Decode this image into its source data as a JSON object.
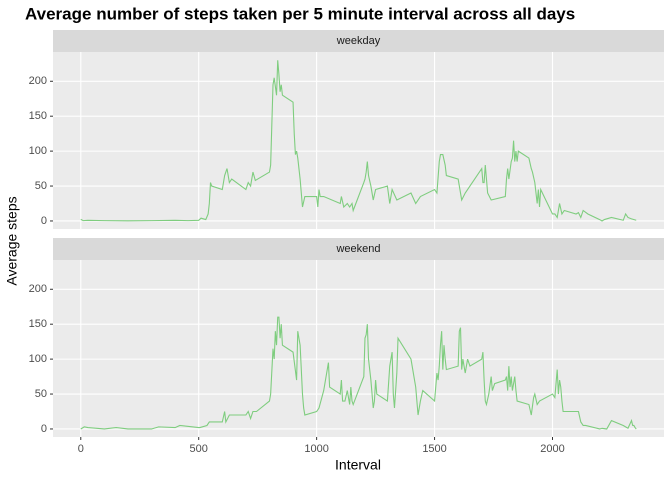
{
  "title": "Average number of steps taken per 5 minute interval across all days",
  "x_label": "Interval",
  "y_label": "Average steps",
  "chart_data": [
    {
      "type": "line",
      "title": "weekday",
      "color": "#7fcd7f",
      "grid": true,
      "xlim": [
        -117.75,
        2472.75
      ],
      "xticks": [
        0,
        500,
        1000,
        1500,
        2000
      ],
      "ylim": [
        -11.5,
        241.9
      ],
      "yticks": [
        0,
        50,
        100,
        150,
        200
      ],
      "x": [
        0,
        10,
        30,
        100,
        200,
        300,
        400,
        455,
        500,
        510,
        530,
        540,
        545,
        550,
        555,
        600,
        610,
        620,
        630,
        640,
        700,
        710,
        720,
        730,
        740,
        750,
        800,
        805,
        815,
        820,
        830,
        835,
        840,
        845,
        850,
        855,
        900,
        905,
        910,
        915,
        920,
        930,
        940,
        950,
        1000,
        1005,
        1010,
        1015,
        1030,
        1100,
        1105,
        1115,
        1130,
        1140,
        1150,
        1155,
        1200,
        1205,
        1210,
        1215,
        1220,
        1230,
        1240,
        1250,
        1300,
        1310,
        1320,
        1340,
        1400,
        1420,
        1440,
        1500,
        1510,
        1520,
        1525,
        1535,
        1545,
        1550,
        1600,
        1615,
        1630,
        1700,
        1705,
        1710,
        1715,
        1720,
        1725,
        1740,
        1800,
        1805,
        1810,
        1815,
        1825,
        1830,
        1835,
        1840,
        1845,
        1850,
        1855,
        1900,
        1910,
        1915,
        1925,
        1935,
        1940,
        1945,
        1950,
        2000,
        2010,
        2020,
        2030,
        2040,
        2050,
        2100,
        2110,
        2120,
        2130,
        2150,
        2200,
        2210,
        2220,
        2250,
        2300,
        2310,
        2320,
        2335,
        2355
      ],
      "values": [
        2.3,
        0.5,
        1,
        0.5,
        0.2,
        0.5,
        1,
        0.5,
        1,
        4,
        2,
        10,
        25,
        55,
        50,
        45,
        65,
        75,
        55,
        60,
        45,
        55,
        50,
        70,
        58,
        60,
        70,
        80,
        195,
        205,
        180,
        230,
        210,
        185,
        195,
        180,
        170,
        125,
        95,
        100,
        90,
        60,
        20,
        35,
        35,
        20,
        45,
        35,
        35,
        25,
        35,
        20,
        25,
        20,
        25,
        15,
        55,
        60,
        70,
        85,
        65,
        50,
        30,
        45,
        50,
        25,
        45,
        30,
        40,
        25,
        35,
        45,
        40,
        85,
        95,
        95,
        80,
        65,
        60,
        30,
        40,
        75,
        55,
        55,
        80,
        60,
        40,
        30,
        35,
        60,
        75,
        60,
        85,
        90,
        115,
        85,
        100,
        85,
        100,
        90,
        75,
        70,
        55,
        25,
        45,
        20,
        45,
        10,
        10,
        5,
        25,
        10,
        15,
        10,
        12,
        5,
        15,
        10,
        2,
        0,
        2,
        5,
        1,
        10,
        5,
        3,
        1
      ]
    },
    {
      "type": "line",
      "title": "weekend",
      "color": "#7fcd7f",
      "grid": true,
      "xlim": [
        -117.75,
        2472.75
      ],
      "xticks": [
        0,
        500,
        1000,
        1500,
        2000
      ],
      "ylim": [
        -11.5,
        241.9
      ],
      "yticks": [
        0,
        50,
        100,
        150,
        200
      ],
      "x": [
        0,
        15,
        30,
        100,
        150,
        200,
        300,
        330,
        400,
        420,
        500,
        505,
        535,
        545,
        600,
        610,
        615,
        630,
        700,
        710,
        720,
        730,
        745,
        800,
        805,
        815,
        820,
        825,
        830,
        835,
        840,
        845,
        850,
        855,
        900,
        915,
        920,
        930,
        940,
        945,
        950,
        1000,
        1010,
        1030,
        1040,
        1050,
        1055,
        1100,
        1105,
        1110,
        1120,
        1130,
        1140,
        1145,
        1150,
        1155,
        1200,
        1205,
        1210,
        1215,
        1220,
        1230,
        1240,
        1245,
        1250,
        1255,
        1300,
        1310,
        1320,
        1325,
        1330,
        1340,
        1345,
        1400,
        1420,
        1430,
        1440,
        1450,
        1500,
        1510,
        1515,
        1520,
        1525,
        1530,
        1535,
        1540,
        1545,
        1550,
        1600,
        1605,
        1610,
        1615,
        1620,
        1630,
        1640,
        1650,
        1700,
        1705,
        1710,
        1715,
        1720,
        1730,
        1740,
        1745,
        1750,
        1755,
        1800,
        1805,
        1810,
        1815,
        1820,
        1825,
        1830,
        1840,
        1845,
        1850,
        1900,
        1910,
        1920,
        1925,
        1935,
        1945,
        2000,
        2010,
        2020,
        2025,
        2030,
        2035,
        2040,
        2045,
        2100,
        2110,
        2120,
        2130,
        2140,
        2200,
        2210,
        2230,
        2250,
        2300,
        2310,
        2320,
        2335,
        2340,
        2345,
        2350,
        2355
      ],
      "values": [
        0,
        3,
        2,
        0,
        2,
        0,
        0,
        3,
        2,
        5,
        2,
        2,
        5,
        10,
        10,
        25,
        10,
        20,
        20,
        25,
        15,
        25,
        25,
        40,
        50,
        115,
        100,
        140,
        120,
        160,
        160,
        130,
        150,
        120,
        110,
        70,
        140,
        120,
        50,
        30,
        20,
        25,
        30,
        55,
        75,
        95,
        60,
        50,
        70,
        40,
        40,
        55,
        35,
        60,
        40,
        35,
        75,
        130,
        135,
        150,
        100,
        70,
        30,
        40,
        70,
        50,
        40,
        90,
        110,
        50,
        30,
        80,
        130,
        100,
        60,
        20,
        40,
        55,
        40,
        80,
        70,
        90,
        120,
        140,
        85,
        120,
        100,
        85,
        90,
        140,
        145,
        85,
        100,
        80,
        100,
        90,
        100,
        110,
        70,
        40,
        35,
        50,
        75,
        55,
        60,
        65,
        70,
        75,
        55,
        90,
        60,
        75,
        55,
        75,
        55,
        40,
        35,
        20,
        45,
        50,
        35,
        40,
        50,
        45,
        85,
        50,
        70,
        60,
        40,
        25,
        25,
        25,
        10,
        5,
        5,
        0,
        1,
        0,
        12,
        5,
        3,
        1,
        12,
        5,
        5,
        2,
        0
      ]
    }
  ]
}
